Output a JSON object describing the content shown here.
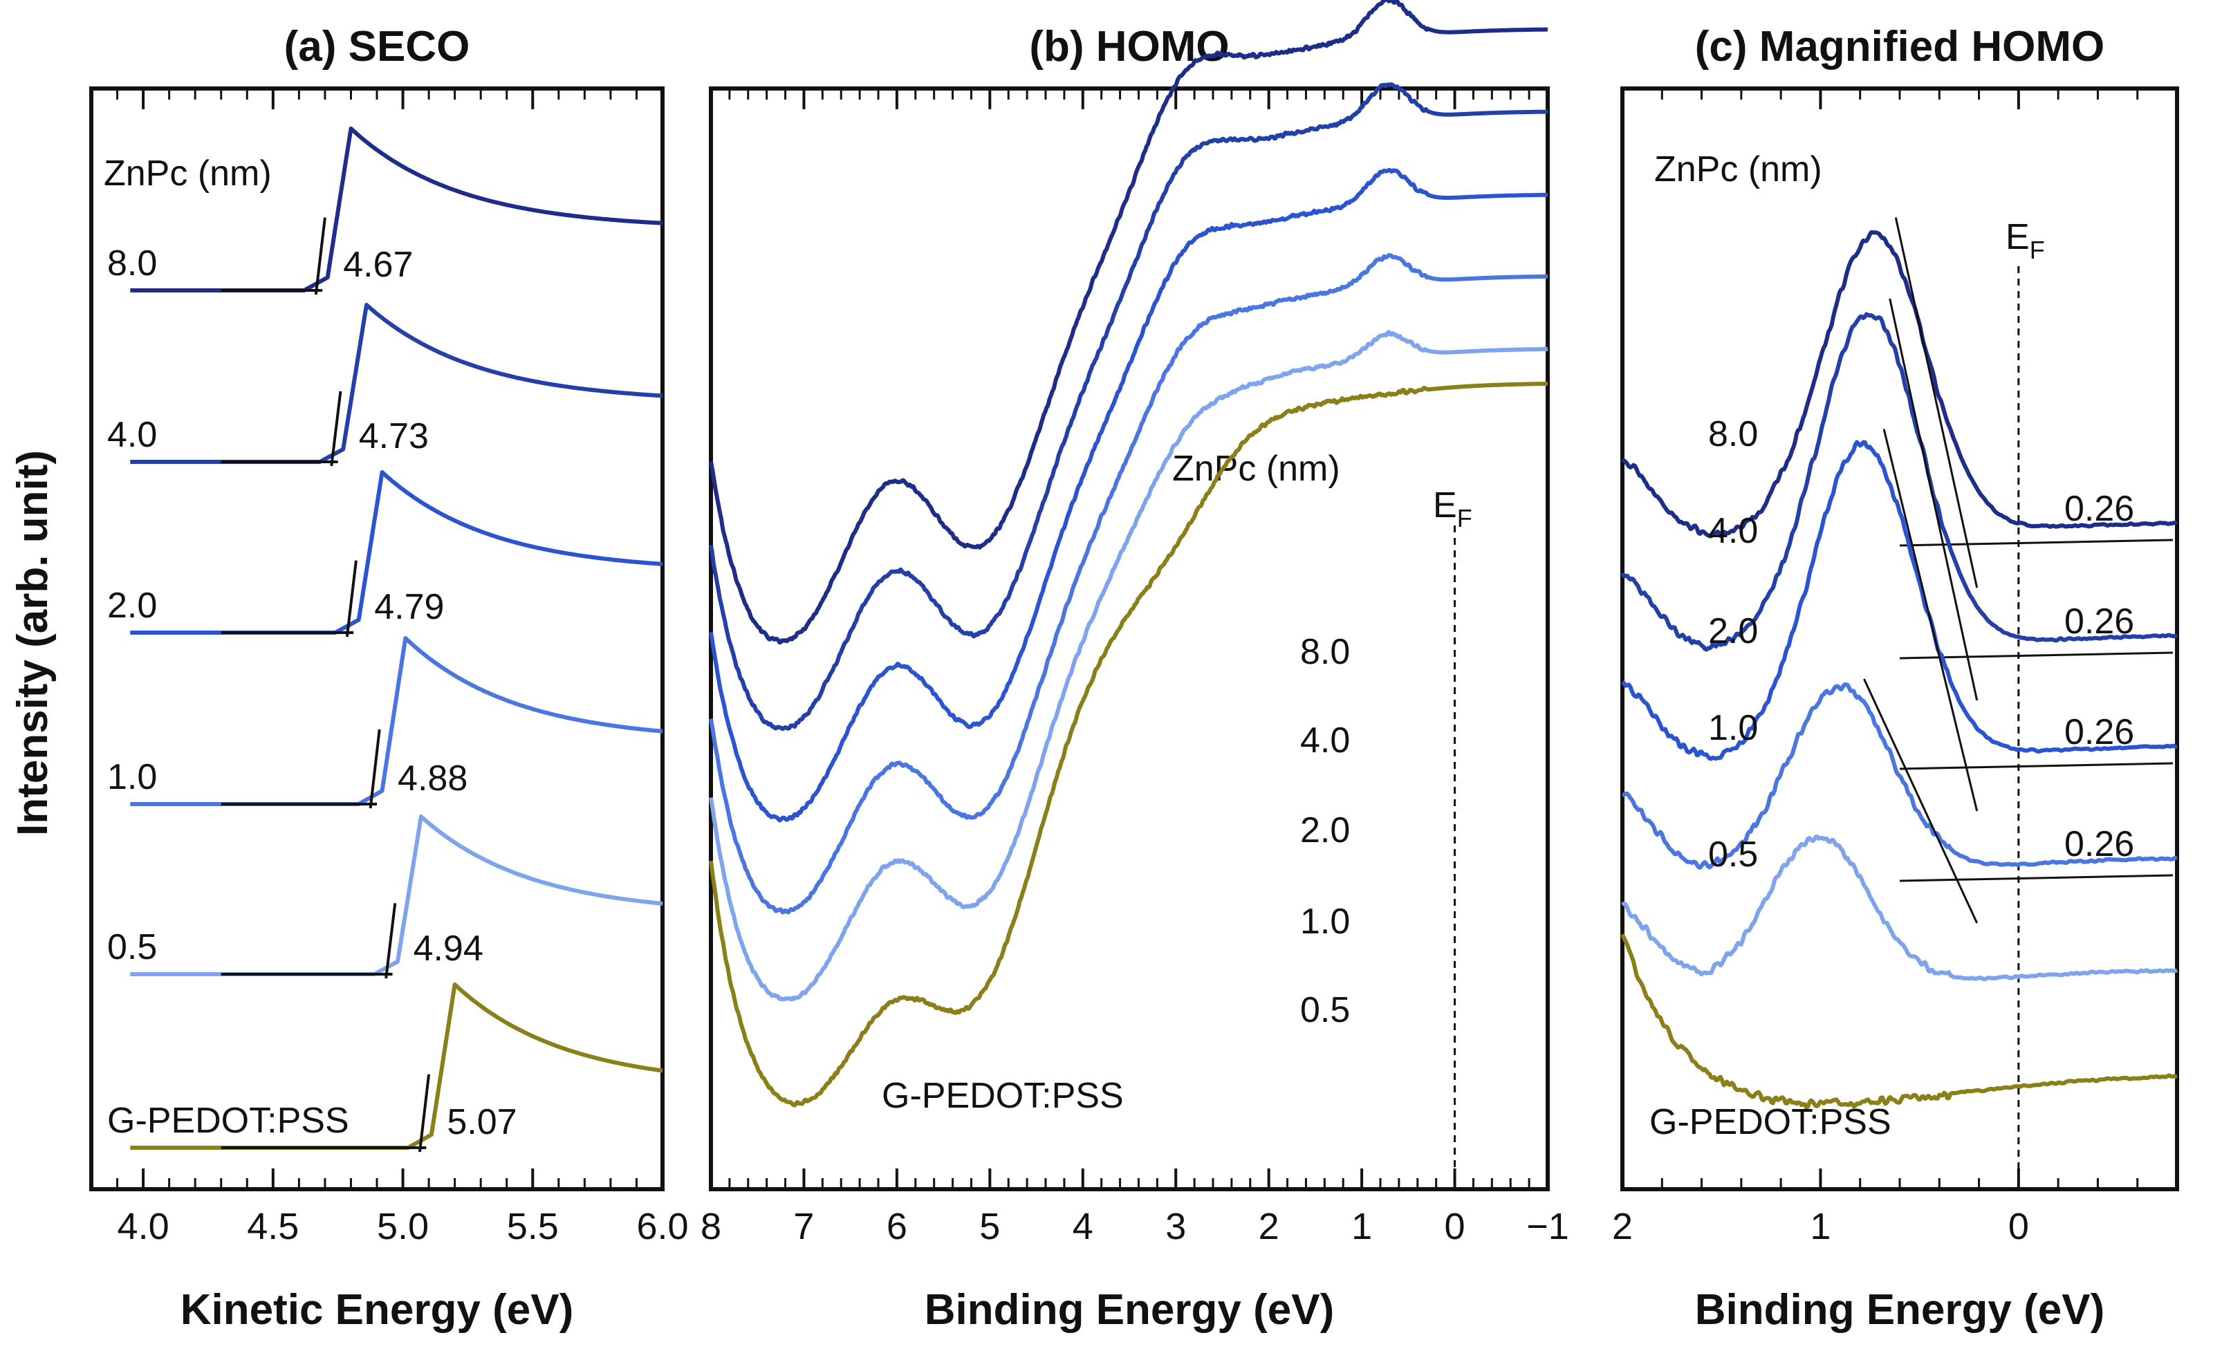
{
  "figure": {
    "ylabel": "Intensity (arb. unit)"
  },
  "chart_data": [
    {
      "id": "a",
      "type": "line",
      "title": "(a) SECO",
      "xlabel": "Kinetic Energy (eV)",
      "ylabel": "Intensity (arb. unit)",
      "xlim": [
        3.8,
        6.0
      ],
      "xticks": [
        "4.0",
        "4.5",
        "5.0",
        "5.5",
        "6.0"
      ],
      "xtick_values": [
        4.0,
        4.5,
        5.0,
        5.5,
        6.0
      ],
      "legend_header": "ZnPc (nm)",
      "grid": false,
      "series": [
        {
          "name": "8.0",
          "onset_label": "4.67",
          "cutoff": 4.67,
          "color": "#1f2d8a"
        },
        {
          "name": "4.0",
          "onset_label": "4.73",
          "cutoff": 4.73,
          "color": "#233fa8"
        },
        {
          "name": "2.0",
          "onset_label": "4.79",
          "cutoff": 4.79,
          "color": "#2b55d0"
        },
        {
          "name": "1.0",
          "onset_label": "4.88",
          "cutoff": 4.88,
          "color": "#4a76e0"
        },
        {
          "name": "0.5",
          "onset_label": "4.94",
          "cutoff": 4.94,
          "color": "#7ea4ee"
        },
        {
          "name": "G-PEDOT:PSS",
          "onset_label": "5.07",
          "cutoff": 5.07,
          "color": "#8a7f18"
        }
      ]
    },
    {
      "id": "b",
      "type": "line",
      "title": "(b) HOMO",
      "xlabel": "Binding Energy (eV)",
      "xlim": [
        8,
        -1
      ],
      "xticks": [
        "8",
        "7",
        "6",
        "5",
        "4",
        "3",
        "2",
        "1",
        "0",
        "−1"
      ],
      "xtick_values": [
        8,
        7,
        6,
        5,
        4,
        3,
        2,
        1,
        0,
        -1
      ],
      "legend_header": "ZnPc (nm)",
      "fermi_label": "E",
      "fermi_sub": "F",
      "fermi_x": 0,
      "grid": false,
      "series": [
        {
          "name": "8.0",
          "color": "#1f2d8a"
        },
        {
          "name": "4.0",
          "color": "#233fa8"
        },
        {
          "name": "2.0",
          "color": "#2b55d0"
        },
        {
          "name": "1.0",
          "color": "#4a76e0"
        },
        {
          "name": "0.5",
          "color": "#7ea4ee"
        },
        {
          "name": "G-PEDOT:PSS",
          "color": "#8a7f18"
        }
      ]
    },
    {
      "id": "c",
      "type": "line",
      "title": "(c) Magnified HOMO",
      "xlabel": "Binding Energy (eV)",
      "xlim": [
        2,
        -0.8
      ],
      "xticks": [
        "2",
        "1",
        "0"
      ],
      "xtick_values": [
        2,
        1,
        0
      ],
      "legend_header": "ZnPc (nm)",
      "fermi_label": "E",
      "fermi_sub": "F",
      "fermi_x": 0,
      "grid": false,
      "series": [
        {
          "name": "8.0",
          "onset_label": "0.26",
          "onset": 0.26,
          "color": "#1f2d8a"
        },
        {
          "name": "4.0",
          "onset_label": "0.26",
          "onset": 0.26,
          "color": "#233fa8"
        },
        {
          "name": "2.0",
          "onset_label": "0.26",
          "onset": 0.26,
          "color": "#2b55d0"
        },
        {
          "name": "1.0",
          "onset_label": "0.26",
          "onset": 0.26,
          "color": "#4a76e0"
        },
        {
          "name": "0.5",
          "color": "#7ea4ee"
        },
        {
          "name": "G-PEDOT:PSS",
          "color": "#8a7f18"
        }
      ]
    }
  ]
}
